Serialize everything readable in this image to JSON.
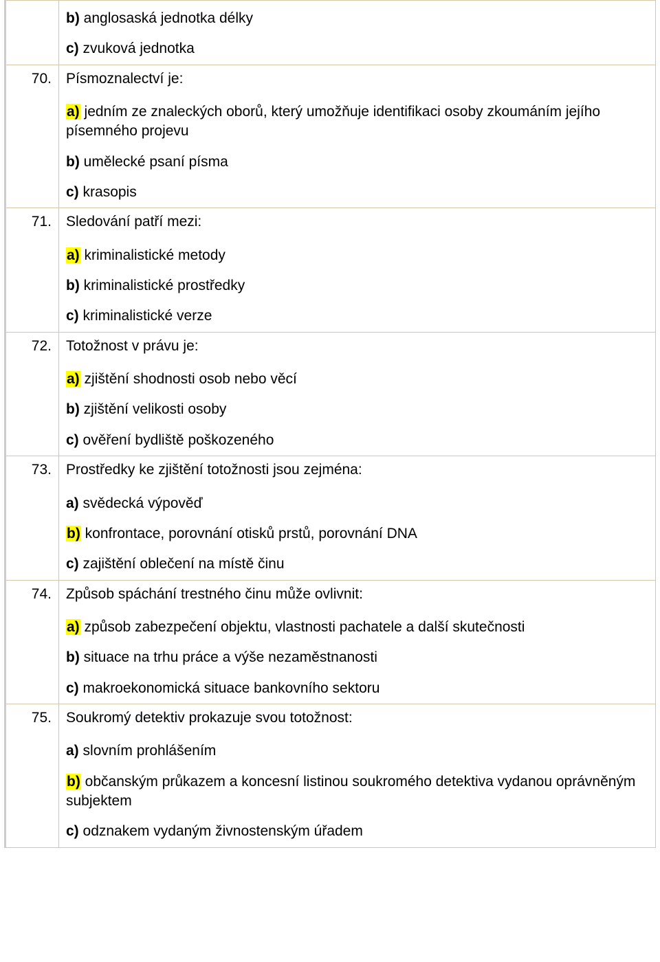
{
  "colors": {
    "table_border": "#d4c6a6",
    "left_rule": "#cccccc",
    "highlight_bg": "#ffff00",
    "text": "#000000",
    "background": "#ffffff"
  },
  "typography": {
    "font_family": "Arial",
    "font_size_pt": 16,
    "line_height": 1.35
  },
  "questions": [
    {
      "number": "",
      "stem": "",
      "options": [
        {
          "letter": "b)",
          "text": " anglosaská jednotka délky",
          "highlight": false
        },
        {
          "letter": "c)",
          "text": " zvuková jednotka",
          "highlight": false
        }
      ]
    },
    {
      "number": "70.",
      "stem": "Písmoznalectví je:",
      "options": [
        {
          "letter": "a)",
          "text": " jedním ze znaleckých oborů, který umožňuje identifikaci osoby zkoumáním jejího písemného projevu",
          "highlight": true
        },
        {
          "letter": "b)",
          "text": " umělecké psaní písma",
          "highlight": false
        },
        {
          "letter": "c)",
          "text": " krasopis",
          "highlight": false
        }
      ]
    },
    {
      "number": "71.",
      "stem": "Sledování patří mezi:",
      "options": [
        {
          "letter": "a)",
          "text": " kriminalistické metody",
          "highlight": true
        },
        {
          "letter": "b)",
          "text": " kriminalistické prostředky",
          "highlight": false
        },
        {
          "letter": "c)",
          "text": " kriminalistické verze",
          "highlight": false
        }
      ]
    },
    {
      "number": "72.",
      "stem": "Totožnost v právu je:",
      "options": [
        {
          "letter": "a)",
          "text": " zjištění shodnosti osob nebo věcí",
          "highlight": true
        },
        {
          "letter": "b)",
          "text": " zjištění velikosti osoby",
          "highlight": false
        },
        {
          "letter": "c)",
          "text": " ověření bydliště poškozeného",
          "highlight": false
        }
      ]
    },
    {
      "number": "73.",
      "stem": "Prostředky ke zjištění totožnosti jsou zejména:",
      "options": [
        {
          "letter": "a)",
          "text": " svědecká výpověď",
          "highlight": false
        },
        {
          "letter": "b)",
          "text": " konfrontace, porovnání otisků prstů, porovnání DNA",
          "highlight": true
        },
        {
          "letter": "c)",
          "text": " zajištění oblečení na místě činu",
          "highlight": false
        }
      ]
    },
    {
      "number": "74.",
      "stem": "Způsob spáchání trestného činu může ovlivnit:",
      "options": [
        {
          "letter": "a)",
          "text": " způsob zabezpečení objektu, vlastnosti pachatele a další skutečnosti",
          "highlight": true
        },
        {
          "letter": "b)",
          "text": " situace na trhu práce a výše nezaměstnanosti",
          "highlight": false
        },
        {
          "letter": "c)",
          "text": " makroekonomická situace bankovního sektoru",
          "highlight": false
        }
      ]
    },
    {
      "number": "75.",
      "stem": "Soukromý detektiv prokazuje svou totožnost:",
      "options": [
        {
          "letter": "a)",
          "text": " slovním prohlášením",
          "highlight": false
        },
        {
          "letter": "b)",
          "text": " občanským průkazem a koncesní listinou soukromého detektiva vydanou oprávněným subjektem",
          "highlight": true
        },
        {
          "letter": "c)",
          "text": " odznakem vydaným živnostenským úřadem",
          "highlight": false
        }
      ]
    }
  ]
}
